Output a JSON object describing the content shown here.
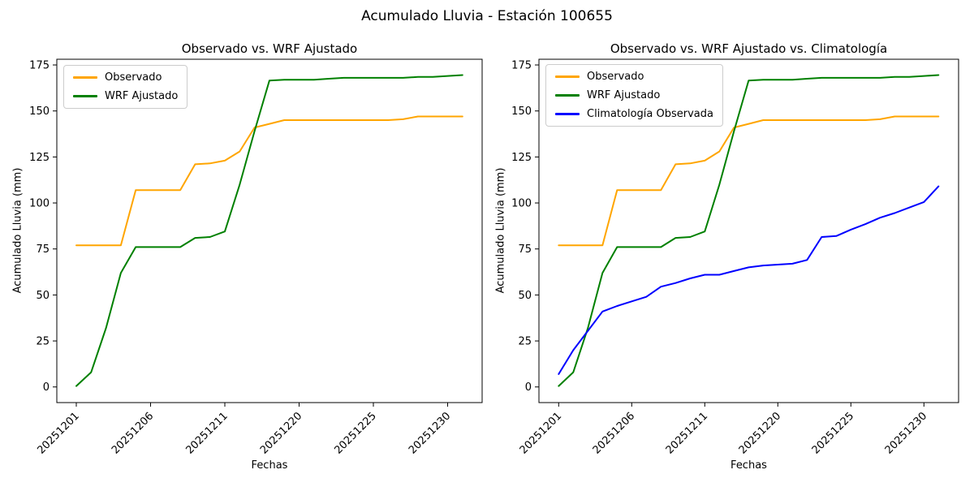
{
  "figure": {
    "suptitle": "Acumulado Lluvia - Estación 100655"
  },
  "chart_data": [
    {
      "type": "line",
      "title": "Observado vs. WRF Ajustado",
      "xlabel": "Fechas",
      "ylabel": "Acumulado Lluvia (mm)",
      "legend_position": "upper left",
      "grid": false,
      "ylim": [
        -8.5,
        178.1
      ],
      "y_ticks": [
        0,
        25,
        50,
        75,
        100,
        125,
        150,
        175
      ],
      "x_tick_labels": [
        "20251201",
        "20251206",
        "20251211",
        "20251220",
        "20251225",
        "20251230"
      ],
      "categories": [
        "20251201",
        "20251202",
        "20251203",
        "20251204",
        "20251205",
        "20251206",
        "20251207",
        "20251208",
        "20251209",
        "20251210",
        "20251211",
        "20251216",
        "20251217",
        "20251218",
        "20251219",
        "20251220",
        "20251221",
        "20251222",
        "20251223",
        "20251224",
        "20251225",
        "20251226",
        "20251227",
        "20251228",
        "20251229",
        "20251230",
        "20251231"
      ],
      "series": [
        {
          "name": "Observado",
          "color": "#FFA500",
          "values": [
            77,
            77,
            77,
            77,
            107,
            107,
            107,
            107,
            121,
            121.5,
            123,
            128,
            141,
            143,
            145,
            145,
            145,
            145,
            145,
            145,
            145,
            145,
            145.5,
            147,
            147,
            147,
            147
          ]
        },
        {
          "name": "WRF Ajustado",
          "color": "#008000",
          "values": [
            0.5,
            8,
            32,
            62,
            76,
            76,
            76,
            76,
            81,
            81.5,
            84.5,
            110,
            139,
            166.5,
            167,
            167,
            167,
            167.5,
            168,
            168,
            168,
            168,
            168,
            168.5,
            168.5,
            169,
            169.5
          ]
        }
      ]
    },
    {
      "type": "line",
      "title": "Observado vs. WRF Ajustado vs. Climatología",
      "xlabel": "Fechas",
      "ylabel": "Acumulado Lluvia (mm)",
      "legend_position": "upper left",
      "grid": false,
      "ylim": [
        -8.5,
        178.1
      ],
      "y_ticks": [
        0,
        25,
        50,
        75,
        100,
        125,
        150,
        175
      ],
      "x_tick_labels": [
        "20251201",
        "20251206",
        "20251211",
        "20251220",
        "20251225",
        "20251230"
      ],
      "categories": [
        "20251201",
        "20251202",
        "20251203",
        "20251204",
        "20251205",
        "20251206",
        "20251207",
        "20251208",
        "20251209",
        "20251210",
        "20251211",
        "20251216",
        "20251217",
        "20251218",
        "20251219",
        "20251220",
        "20251221",
        "20251222",
        "20251223",
        "20251224",
        "20251225",
        "20251226",
        "20251227",
        "20251228",
        "20251229",
        "20251230",
        "20251231"
      ],
      "series": [
        {
          "name": "Observado",
          "color": "#FFA500",
          "values": [
            77,
            77,
            77,
            77,
            107,
            107,
            107,
            107,
            121,
            121.5,
            123,
            128,
            141,
            143,
            145,
            145,
            145,
            145,
            145,
            145,
            145,
            145,
            145.5,
            147,
            147,
            147,
            147
          ]
        },
        {
          "name": "WRF Ajustado",
          "color": "#008000",
          "values": [
            0.5,
            8,
            32,
            62,
            76,
            76,
            76,
            76,
            81,
            81.5,
            84.5,
            110,
            139,
            166.5,
            167,
            167,
            167,
            167.5,
            168,
            168,
            168,
            168,
            168,
            168.5,
            168.5,
            169,
            169.5
          ]
        },
        {
          "name": "Climatología Observada",
          "color": "#0000FF",
          "values": [
            7,
            20,
            30.5,
            41,
            44,
            46.5,
            49,
            54.5,
            56.5,
            59,
            61,
            61,
            63,
            65,
            66,
            66.5,
            67,
            69,
            81.5,
            82,
            85.5,
            88.5,
            92,
            94.5,
            97.5,
            100.5,
            109
          ]
        }
      ]
    }
  ]
}
